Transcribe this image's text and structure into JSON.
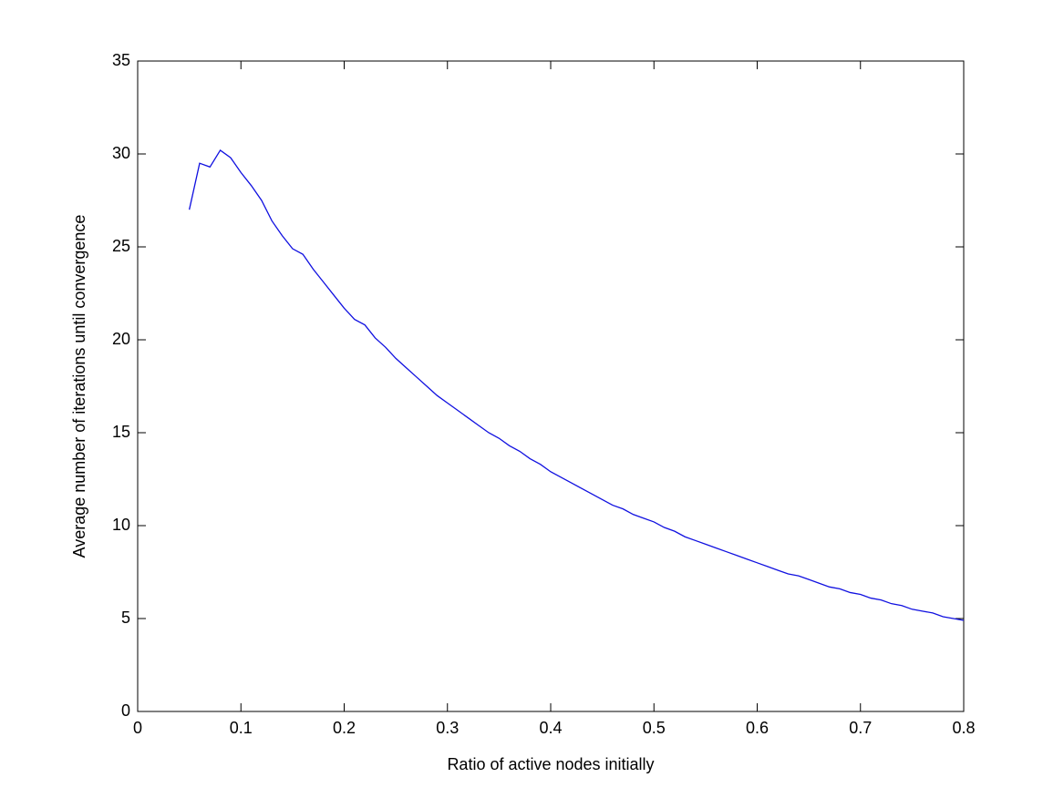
{
  "chart_data": {
    "type": "line",
    "xlabel": "Ratio of active nodes initially",
    "ylabel": "Average number of iterations until convergence",
    "x": [
      0.05,
      0.06,
      0.07,
      0.08,
      0.09,
      0.1,
      0.11,
      0.12,
      0.13,
      0.14,
      0.15,
      0.16,
      0.17,
      0.18,
      0.19,
      0.2,
      0.21,
      0.22,
      0.23,
      0.24,
      0.25,
      0.26,
      0.27,
      0.28,
      0.29,
      0.3,
      0.31,
      0.32,
      0.33,
      0.34,
      0.35,
      0.36,
      0.37,
      0.38,
      0.39,
      0.4,
      0.41,
      0.42,
      0.43,
      0.44,
      0.45,
      0.46,
      0.47,
      0.48,
      0.49,
      0.5,
      0.51,
      0.52,
      0.53,
      0.54,
      0.55,
      0.56,
      0.57,
      0.58,
      0.59,
      0.6,
      0.61,
      0.62,
      0.63,
      0.64,
      0.65,
      0.66,
      0.67,
      0.68,
      0.69,
      0.7,
      0.71,
      0.72,
      0.73,
      0.74,
      0.75,
      0.76,
      0.77,
      0.78,
      0.79,
      0.8
    ],
    "series": [
      {
        "color": "#1010e0",
        "values": [
          27.0,
          29.5,
          29.3,
          30.2,
          29.8,
          29.0,
          28.3,
          27.5,
          26.4,
          25.6,
          24.9,
          24.6,
          23.8,
          23.1,
          22.4,
          21.7,
          21.1,
          20.8,
          20.1,
          19.6,
          19.0,
          18.5,
          18.0,
          17.5,
          17.0,
          16.6,
          16.2,
          15.8,
          15.4,
          15.0,
          14.7,
          14.3,
          14.0,
          13.6,
          13.3,
          12.9,
          12.6,
          12.3,
          12.0,
          11.7,
          11.4,
          11.1,
          10.9,
          10.6,
          10.4,
          10.2,
          9.9,
          9.7,
          9.4,
          9.2,
          9.0,
          8.8,
          8.6,
          8.4,
          8.2,
          8.0,
          7.8,
          7.6,
          7.4,
          7.3,
          7.1,
          6.9,
          6.7,
          6.6,
          6.4,
          6.3,
          6.1,
          6.0,
          5.8,
          5.7,
          5.5,
          5.4,
          5.3,
          5.1,
          5.0,
          4.9
        ]
      }
    ],
    "xlim": [
      0,
      0.8
    ],
    "xticks": [
      0,
      0.1,
      0.2,
      0.3,
      0.4,
      0.5,
      0.6,
      0.7,
      0.8
    ],
    "ylim": [
      0,
      35
    ],
    "yticks": [
      0,
      5,
      10,
      15,
      20,
      25,
      30,
      35
    ]
  }
}
